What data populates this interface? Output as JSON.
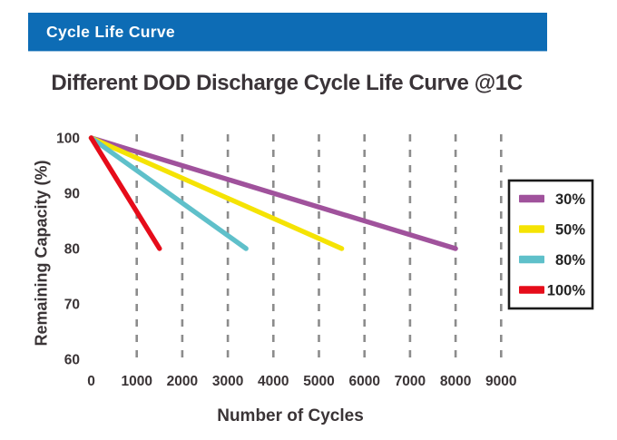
{
  "banner": {
    "label": "Cycle Life Curve",
    "bg_color": "#0d6cb5",
    "text_color": "#ffffff"
  },
  "title": "Different DOD Discharge Cycle Life Curve @1C",
  "chart_data": {
    "type": "line",
    "title": "Different DOD Discharge Cycle Life Curve @1C",
    "xlabel": "Number of Cycles",
    "ylabel": "Remaining Capacity (%)",
    "xlim": [
      0,
      9000
    ],
    "ylim": [
      60,
      100
    ],
    "xticks": [
      0,
      1000,
      2000,
      3000,
      4000,
      5000,
      6000,
      7000,
      8000,
      9000
    ],
    "yticks": [
      100,
      90,
      80,
      70,
      60
    ],
    "grid": "vertical-dashed",
    "gridline_color": "#8c8c8c",
    "legend_position": "right",
    "legend_border_color": "#1a1a1a",
    "series": [
      {
        "name": "30%",
        "color": "#a0529c",
        "points": [
          [
            0,
            100
          ],
          [
            8000,
            80
          ]
        ]
      },
      {
        "name": "50%",
        "color": "#f5e303",
        "points": [
          [
            0,
            100
          ],
          [
            5500,
            80
          ]
        ]
      },
      {
        "name": "80%",
        "color": "#5fc0ca",
        "points": [
          [
            0,
            100
          ],
          [
            3400,
            80
          ]
        ]
      },
      {
        "name": "100%",
        "color": "#e60c1a",
        "points": [
          [
            0,
            100
          ],
          [
            1500,
            80
          ]
        ]
      }
    ]
  }
}
